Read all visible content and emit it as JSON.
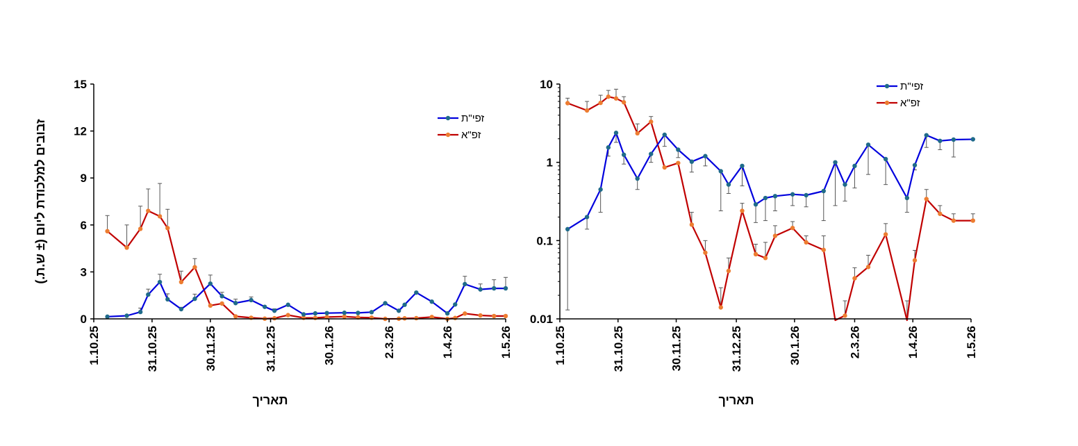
{
  "chart_data": [
    {
      "type": "line",
      "scale": "linear",
      "xlabel": "תאריך",
      "ylabel": "זבובים למלכודת ליום (± ש.ת.)",
      "ylim": [
        0,
        15
      ],
      "y_ticks": [
        0,
        3,
        6,
        9,
        12,
        15
      ],
      "y_tick_labels": [
        "0",
        "3",
        "6",
        "9",
        "12",
        "15"
      ],
      "x_range": [
        "2025-10-01",
        "2026-05-01"
      ],
      "x_ticks": [
        "2025-10-01",
        "2025-10-31",
        "2025-11-30",
        "2025-12-31",
        "2026-01-30",
        "2026-03-02",
        "2026-04-01",
        "2026-05-01"
      ],
      "x_tick_labels": [
        "1.10.25",
        "31.10.25",
        "30.11.25",
        "31.12.25",
        "30.1.26",
        "2.3.26",
        "1.4.26",
        "1.5.26"
      ],
      "legend": "top-right",
      "grid": false,
      "series": [
        {
          "name": "זפי\"ת",
          "color": "#0000dd",
          "marker_color": "#1f6b8a",
          "x": [
            "2025-10-08",
            "2025-10-18",
            "2025-10-25",
            "2025-10-29",
            "2025-11-04",
            "2025-11-08",
            "2025-11-15",
            "2025-11-22",
            "2025-11-30",
            "2025-12-06",
            "2025-12-13",
            "2025-12-21",
            "2025-12-28",
            "2026-01-02",
            "2026-01-09",
            "2026-01-17",
            "2026-01-23",
            "2026-01-29",
            "2026-02-07",
            "2026-02-14",
            "2026-02-21",
            "2026-02-28",
            "2026-03-07",
            "2026-03-10",
            "2026-03-16",
            "2026-03-24",
            "2026-04-01",
            "2026-04-05",
            "2026-04-10",
            "2026-04-18",
            "2026-04-25",
            "2026-05-01"
          ],
          "y": [
            0.14,
            0.2,
            0.44,
            1.55,
            2.35,
            1.25,
            0.62,
            1.28,
            2.25,
            1.45,
            1.01,
            1.2,
            0.77,
            0.52,
            0.9,
            0.29,
            0.35,
            0.37,
            0.39,
            0.38,
            0.43,
            1.0,
            0.52,
            0.9,
            1.68,
            1.1,
            0.35,
            0.92,
            2.22,
            1.88,
            1.95,
            1.95
          ],
          "error_high": [
            null,
            null,
            0.25,
            0.35,
            0.5,
            0.35,
            0.12,
            0.3,
            0.55,
            0.25,
            0.25,
            0.2,
            null,
            0.12,
            null,
            null,
            null,
            null,
            null,
            null,
            null,
            null,
            null,
            null,
            null,
            null,
            null,
            null,
            0.5,
            0.35,
            0.55,
            0.7
          ]
        },
        {
          "name": "זפ\"א",
          "color": "#c00000",
          "marker_color": "#ed7d31",
          "x": [
            "2025-10-08",
            "2025-10-18",
            "2025-10-25",
            "2025-10-29",
            "2025-11-04",
            "2025-11-08",
            "2025-11-15",
            "2025-11-22",
            "2025-11-30",
            "2025-12-06",
            "2025-12-13",
            "2025-12-21",
            "2025-12-28",
            "2026-01-02",
            "2026-01-09",
            "2026-01-17",
            "2026-01-23",
            "2026-01-29",
            "2026-02-07",
            "2026-02-14",
            "2026-02-21",
            "2026-02-28",
            "2026-03-07",
            "2026-03-10",
            "2026-03-16",
            "2026-03-24",
            "2026-04-01",
            "2026-04-05",
            "2026-04-10",
            "2026-04-18",
            "2026-04-25",
            "2026-05-01"
          ],
          "y": [
            5.6,
            4.55,
            5.75,
            6.9,
            6.55,
            5.8,
            2.35,
            3.3,
            0.85,
            0.98,
            0.16,
            0.07,
            0.014,
            0.04,
            0.24,
            0.066,
            0.06,
            0.115,
            0.145,
            0.095,
            0.075,
            0.0,
            0.011,
            0.033,
            0.046,
            0.12,
            0.0,
            0.055,
            0.34,
            0.22,
            0.18,
            0.18
          ],
          "error_high": [
            1.0,
            1.45,
            1.45,
            1.4,
            2.1,
            1.2,
            0.7,
            0.55,
            null,
            null,
            null,
            null,
            null,
            null,
            null,
            null,
            null,
            null,
            null,
            null,
            null,
            null,
            null,
            null,
            null,
            null,
            null,
            null,
            null,
            null,
            null,
            null
          ]
        }
      ]
    },
    {
      "type": "line",
      "scale": "log",
      "xlabel": "תאריך",
      "ylabel": "",
      "ylim": [
        0.01,
        10
      ],
      "y_ticks": [
        0.01,
        0.1,
        1,
        10
      ],
      "y_tick_labels": [
        "0.01",
        "0.1",
        "1",
        "10"
      ],
      "x_range": [
        "2025-10-01",
        "2026-05-01"
      ],
      "x_ticks": [
        "2025-10-01",
        "2025-10-31",
        "2025-11-30",
        "2025-12-31",
        "2026-01-30",
        "2026-03-02",
        "2026-04-01",
        "2026-05-01"
      ],
      "x_tick_labels": [
        "1.10.25",
        "31.10.25",
        "30.11.25",
        "31.12.25",
        "30.1.26",
        "2.3.26",
        "1.4.26",
        "1.5.26"
      ],
      "legend": "top-right",
      "grid": false,
      "series": [
        {
          "name": "זפי\"ת",
          "color": "#0000dd",
          "marker_color": "#1f6b8a",
          "x": [
            "2025-10-05",
            "2025-10-15",
            "2025-10-22",
            "2025-10-26",
            "2025-10-30",
            "2025-11-03",
            "2025-11-10",
            "2025-11-17",
            "2025-11-24",
            "2025-12-01",
            "2025-12-08",
            "2025-12-15",
            "2025-12-23",
            "2025-12-27",
            "2026-01-03",
            "2026-01-10",
            "2026-01-15",
            "2026-01-20",
            "2026-01-29",
            "2026-02-05",
            "2026-02-14",
            "2026-02-20",
            "2026-02-25",
            "2026-03-02",
            "2026-03-09",
            "2026-03-18",
            "2026-03-29",
            "2026-04-02",
            "2026-04-08",
            "2026-04-15",
            "2026-04-22",
            "2026-05-02"
          ],
          "y": [
            0.14,
            0.2,
            0.45,
            1.55,
            2.38,
            1.25,
            0.62,
            1.28,
            2.25,
            1.45,
            1.02,
            1.2,
            0.77,
            0.52,
            0.9,
            0.29,
            0.35,
            0.37,
            0.39,
            0.38,
            0.43,
            1.0,
            0.52,
            0.9,
            1.68,
            1.1,
            0.35,
            0.92,
            2.22,
            1.88,
            1.95,
            1.97
          ],
          "error_low": [
            0.013,
            0.14,
            0.23,
            1.2,
            1.8,
            0.95,
            0.45,
            1.0,
            1.6,
            1.15,
            0.75,
            0.9,
            0.24,
            0.4,
            0.5,
            0.17,
            0.18,
            0.24,
            0.28,
            0.27,
            0.18,
            0.28,
            0.32,
            0.47,
            0.7,
            0.52,
            0.23,
            0.8,
            1.55,
            1.45,
            1.17,
            1.97
          ]
        },
        {
          "name": "זפ\"א",
          "color": "#c00000",
          "marker_color": "#ed7d31",
          "x": [
            "2025-10-05",
            "2025-10-15",
            "2025-10-22",
            "2025-10-26",
            "2025-10-30",
            "2025-11-03",
            "2025-11-10",
            "2025-11-17",
            "2025-11-24",
            "2025-12-01",
            "2025-12-08",
            "2025-12-15",
            "2025-12-23",
            "2025-12-27",
            "2026-01-03",
            "2026-01-10",
            "2026-01-15",
            "2026-01-20",
            "2026-01-29",
            "2026-02-05",
            "2026-02-14",
            "2026-02-20",
            "2026-02-25",
            "2026-03-02",
            "2026-03-09",
            "2026-03-18",
            "2026-03-29",
            "2026-04-02",
            "2026-04-08",
            "2026-04-15",
            "2026-04-22",
            "2026-05-02"
          ],
          "y": [
            5.7,
            4.6,
            5.75,
            6.9,
            6.55,
            5.85,
            2.35,
            3.3,
            0.86,
            0.98,
            0.16,
            0.07,
            0.014,
            0.041,
            0.24,
            0.067,
            0.06,
            0.115,
            0.145,
            0.095,
            0.076,
            0.0085,
            0.011,
            0.033,
            0.046,
            0.12,
            0.0085,
            0.056,
            0.34,
            0.22,
            0.18,
            0.18
          ],
          "error_high": [
            6.6,
            6.0,
            7.2,
            8.3,
            8.6,
            6.9,
            3.1,
            3.85,
            null,
            null,
            0.23,
            0.1,
            0.025,
            0.06,
            0.3,
            0.09,
            0.095,
            0.155,
            0.175,
            0.115,
            0.115,
            null,
            0.017,
            0.045,
            0.065,
            0.165,
            0.017,
            0.075,
            0.45,
            0.28,
            0.22,
            0.22
          ]
        }
      ]
    }
  ]
}
